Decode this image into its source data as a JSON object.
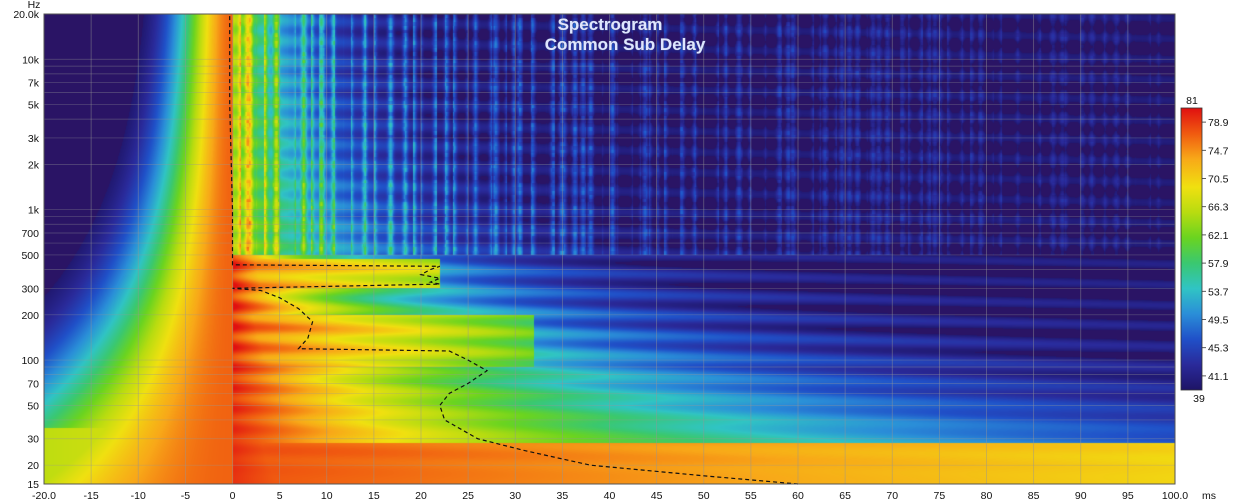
{
  "chart_data": {
    "type": "heatmap",
    "title": "Spectrogram",
    "subtitle": "Common Sub Delay",
    "x_unit": "ms",
    "y_unit": "Hz",
    "xlim": [
      -20,
      100
    ],
    "ylim": [
      15,
      20000
    ],
    "y_scale": "log",
    "grid": true,
    "x_ticks": [
      "-20.0",
      "-15",
      "-10",
      "-5",
      "0",
      "5",
      "10",
      "15",
      "20",
      "25",
      "30",
      "35",
      "40",
      "45",
      "50",
      "55",
      "60",
      "65",
      "70",
      "75",
      "80",
      "85",
      "90",
      "95",
      "100.0"
    ],
    "y_ticks": [
      {
        "value": 15,
        "label": "15"
      },
      {
        "value": 20,
        "label": "20"
      },
      {
        "value": 30,
        "label": "30"
      },
      {
        "value": 50,
        "label": "50"
      },
      {
        "value": 70,
        "label": "70"
      },
      {
        "value": 100,
        "label": "100"
      },
      {
        "value": 200,
        "label": "200"
      },
      {
        "value": 300,
        "label": "300"
      },
      {
        "value": 500,
        "label": "500"
      },
      {
        "value": 700,
        "label": "700"
      },
      {
        "value": 1000,
        "label": "1k"
      },
      {
        "value": 2000,
        "label": "2k"
      },
      {
        "value": 3000,
        "label": "3k"
      },
      {
        "value": 5000,
        "label": "5k"
      },
      {
        "value": 7000,
        "label": "7k"
      },
      {
        "value": 10000,
        "label": "10k"
      },
      {
        "value": 20000,
        "label": "20.0k"
      }
    ],
    "colorbar": {
      "min": 39,
      "max": 81,
      "min_label": "39",
      "max_label": "81",
      "ticks": [
        "78.9",
        "74.7",
        "70.5",
        "66.3",
        "62.1",
        "57.9",
        "53.7",
        "49.5",
        "45.3",
        "41.1"
      ],
      "colors": [
        "#1e1466",
        "#2a2a9a",
        "#2050c8",
        "#2a8ed8",
        "#30c4c4",
        "#3ac870",
        "#6ad420",
        "#b8dc10",
        "#f0e010",
        "#f8a818",
        "#f05a10",
        "#e01010"
      ]
    },
    "peak_time_curve": [
      {
        "f": 15,
        "t": 60
      },
      {
        "f": 17,
        "t": 50
      },
      {
        "f": 20,
        "t": 38
      },
      {
        "f": 25,
        "t": 31
      },
      {
        "f": 30,
        "t": 26
      },
      {
        "f": 40,
        "t": 22.5
      },
      {
        "f": 50,
        "t": 22
      },
      {
        "f": 60,
        "t": 23
      },
      {
        "f": 70,
        "t": 25
      },
      {
        "f": 85,
        "t": 27
      },
      {
        "f": 100,
        "t": 25
      },
      {
        "f": 115,
        "t": 23
      },
      {
        "f": 119,
        "t": 7
      },
      {
        "f": 140,
        "t": 8
      },
      {
        "f": 180,
        "t": 8.5
      },
      {
        "f": 220,
        "t": 7
      },
      {
        "f": 260,
        "t": 5
      },
      {
        "f": 290,
        "t": 3
      },
      {
        "f": 300,
        "t": 0
      },
      {
        "f": 320,
        "t": 22
      },
      {
        "f": 330,
        "t": 21
      },
      {
        "f": 350,
        "t": 22
      },
      {
        "f": 370,
        "t": 20
      },
      {
        "f": 400,
        "t": 21
      },
      {
        "f": 420,
        "t": 22
      },
      {
        "f": 430,
        "t": 0
      },
      {
        "f": 500,
        "t": 0
      },
      {
        "f": 1000,
        "t": 0
      },
      {
        "f": 5000,
        "t": -0.3
      },
      {
        "f": 20000,
        "t": -0.3
      }
    ]
  }
}
